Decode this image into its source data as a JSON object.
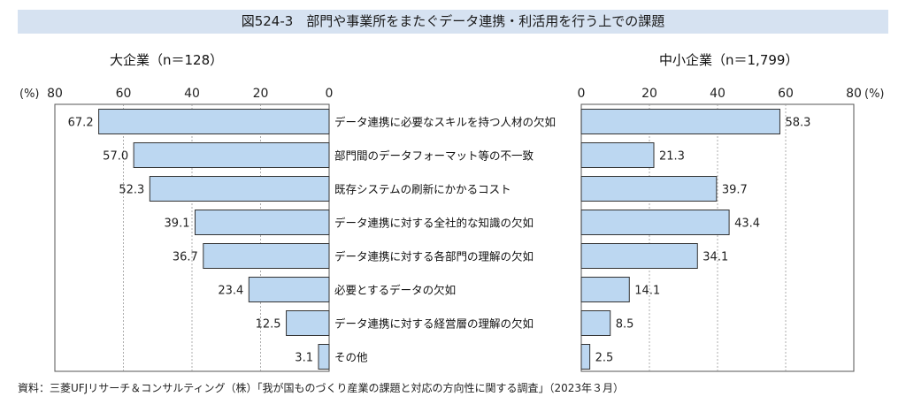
{
  "header": {
    "title": "図524-3　部門や事業所をまたぐデータ連携・利活用を行う上での課題"
  },
  "source": "資料：三菱UFJリサーチ＆コンサルティング（株）「我が国ものづくり産業の課題と対応の方向性に関する調査」（2023年３月）",
  "chart_data": {
    "type": "bar",
    "orientation": "horizontal",
    "layout": "back-to-back",
    "unit": "(%)",
    "categories": [
      "データ連携に必要なスキルを持つ人材の欠如",
      "部門間のデータフォーマット等の不一致",
      "既存システムの刷新にかかるコスト",
      "データ連携に対する全社的な知識の欠如",
      "データ連携に対する各部門の理解の欠如",
      "必要とするデータの欠如",
      "データ連携に対する経営層の理解の欠如",
      "その他"
    ],
    "series": [
      {
        "name": "大企業（n＝128）",
        "values": [
          67.2,
          57.0,
          52.3,
          39.1,
          36.7,
          23.4,
          12.5,
          3.1
        ],
        "labels": [
          "67.2",
          "57.0",
          "52.3",
          "39.1",
          "36.7",
          "23.4",
          "12.5",
          "3.1"
        ],
        "direction": "leftward"
      },
      {
        "name": "中小企業（n＝1,799）",
        "values": [
          58.3,
          21.3,
          39.7,
          43.4,
          34.1,
          14.1,
          8.5,
          2.5
        ],
        "labels": [
          "58.3",
          "21.3",
          "39.7",
          "43.4",
          "34.1",
          "14.1",
          "8.5",
          "2.5"
        ],
        "direction": "rightward"
      }
    ],
    "xlim": [
      0,
      80
    ],
    "ticks": [
      0,
      20,
      40,
      60,
      80
    ],
    "tick_labels": [
      "0",
      "20",
      "40",
      "60",
      "80"
    ],
    "grid": true,
    "colors": {
      "bar_fill": "#bcd7f1",
      "bar_stroke": "#333333",
      "grid": "#999999",
      "title_bg": "#d6e2f1"
    }
  }
}
